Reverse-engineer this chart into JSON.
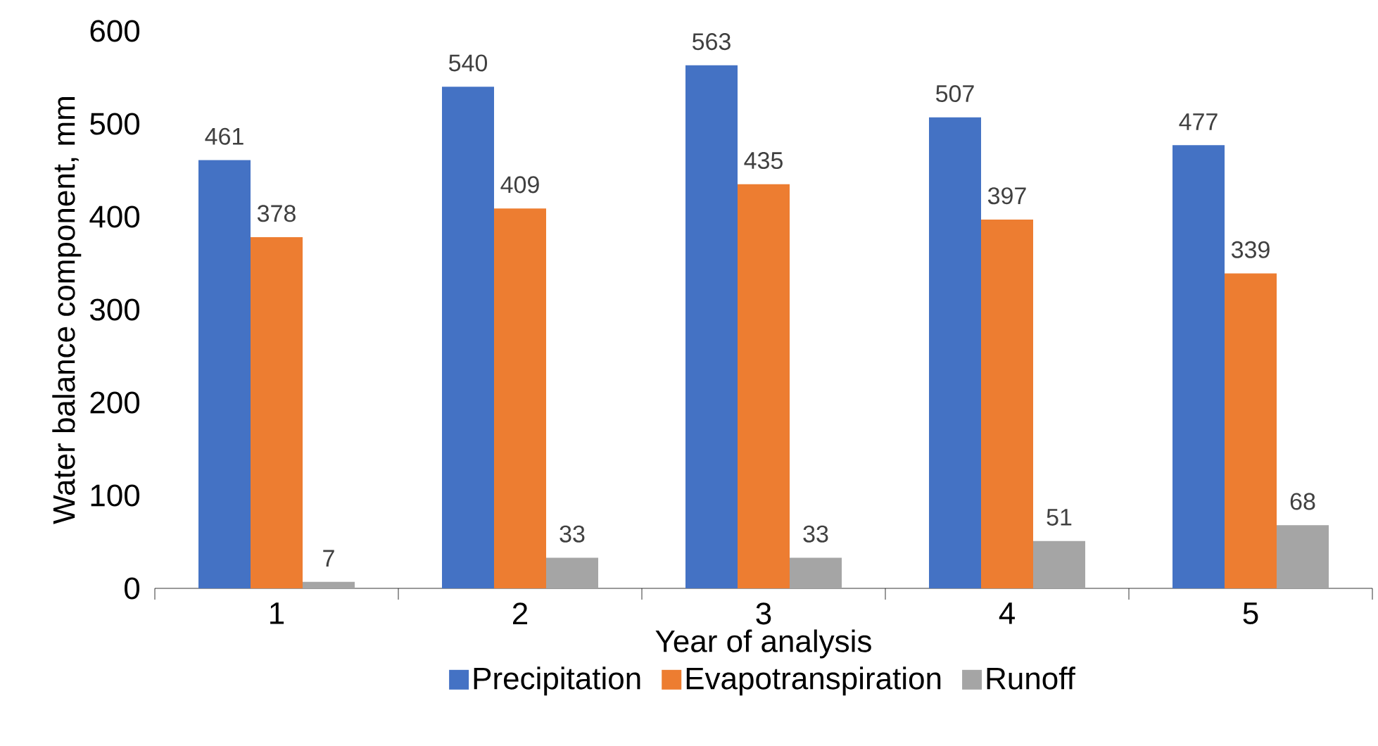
{
  "chart_data": {
    "type": "bar",
    "xlabel": "Year of analysis",
    "ylabel": "Water balance component, mm",
    "categories": [
      "1",
      "2",
      "3",
      "4",
      "5"
    ],
    "series": [
      {
        "name": "Precipitation",
        "color": "#4472c4",
        "values": [
          461,
          540,
          563,
          507,
          477
        ]
      },
      {
        "name": "Evapotranspiration",
        "color": "#ed7d31",
        "values": [
          378,
          409,
          435,
          397,
          339
        ]
      },
      {
        "name": "Runoff",
        "color": "#a5a5a5",
        "values": [
          7,
          33,
          33,
          51,
          68
        ]
      }
    ],
    "ylim": [
      0,
      600
    ],
    "yticks": [
      0,
      100,
      200,
      300,
      400,
      500,
      600
    ],
    "data_labels": true,
    "grid": false,
    "legend": "bottom"
  }
}
